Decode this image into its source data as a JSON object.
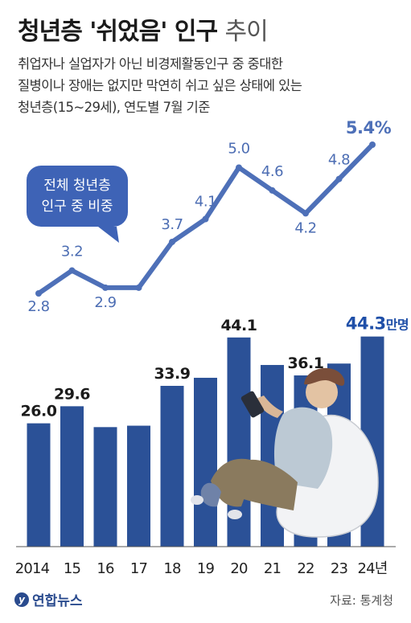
{
  "title_main": "청년층 '쉬었음' 인구",
  "title_light": "추이",
  "subtitle_lines": [
    "취업자나 실업자가 아닌 비경제활동인구 중 중대한",
    "질병이나 장애는 없지만 막연히 쉬고 싶은 상태에 있는",
    "청년층(15~29세), 연도별 7월 기준"
  ],
  "source": "자료: 통계청",
  "logo_text": "연합뉴스",
  "colors": {
    "bar": "#2b5197",
    "line": "#4e70b8",
    "text_dark": "#1b1b1b",
    "highlight": "#1f4fa8"
  },
  "chart_data": {
    "type": "bar",
    "categories": [
      "2014",
      "15",
      "16",
      "17",
      "18",
      "19",
      "20",
      "21",
      "22",
      "23",
      "24년"
    ],
    "series": [
      {
        "values": [
          26.0,
          29.6,
          25.2,
          25.5,
          33.9,
          35.6,
          44.1,
          38.3,
          36.1,
          38.6,
          44.3
        ]
      },
      {
        "values": [
          2.8,
          3.2,
          2.9,
          2.9,
          3.7,
          4.1,
          5.0,
          4.6,
          4.2,
          4.8,
          5.4
        ]
      }
    ],
    "bar_labels": [
      "26.0",
      "29.6",
      "",
      "",
      "33.9",
      "",
      "44.1",
      "",
      "36.1",
      "",
      "44.3"
    ],
    "bar_last_unit": "만명",
    "line_labels": [
      "2.8",
      "3.2",
      "2.9",
      "",
      "3.7",
      "4.1",
      "5.0",
      "4.6",
      "4.2",
      "4.8",
      "5.4%"
    ],
    "callout": [
      "전체 청년층",
      "인구 중 비중"
    ],
    "bar_ylim": [
      0,
      48
    ],
    "line_ylim": [
      2.5,
      5.6
    ]
  }
}
